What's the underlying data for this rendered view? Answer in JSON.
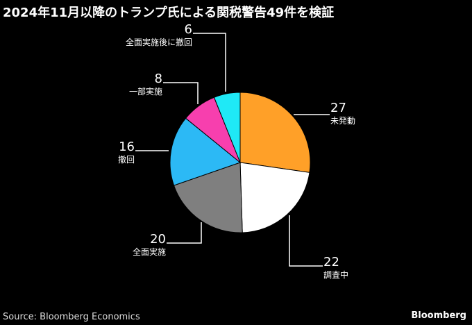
{
  "title": "2024年11月以降のトランプ氏による関税警告49件を検証",
  "source": "Source: Bloomberg Economics",
  "logo": "Bloomberg",
  "chart_data": {
    "type": "pie",
    "title": "2024年11月以降のトランプ氏による関税警告49件を検証",
    "start": "12 o'clock, clockwise",
    "slices": [
      {
        "label": "未発動",
        "value": 27,
        "color": "#ffa028"
      },
      {
        "label": "調査中",
        "value": 22,
        "color": "#ffffff"
      },
      {
        "label": "全面実施",
        "value": 20,
        "color": "#7f7f7f"
      },
      {
        "label": "撤回",
        "value": 16,
        "color": "#2cb9f5"
      },
      {
        "label": "一部実施",
        "value": 8,
        "color": "#f73fae"
      },
      {
        "label": "全面実施後に撤回",
        "value": 6,
        "color": "#1fe9f6"
      }
    ]
  }
}
